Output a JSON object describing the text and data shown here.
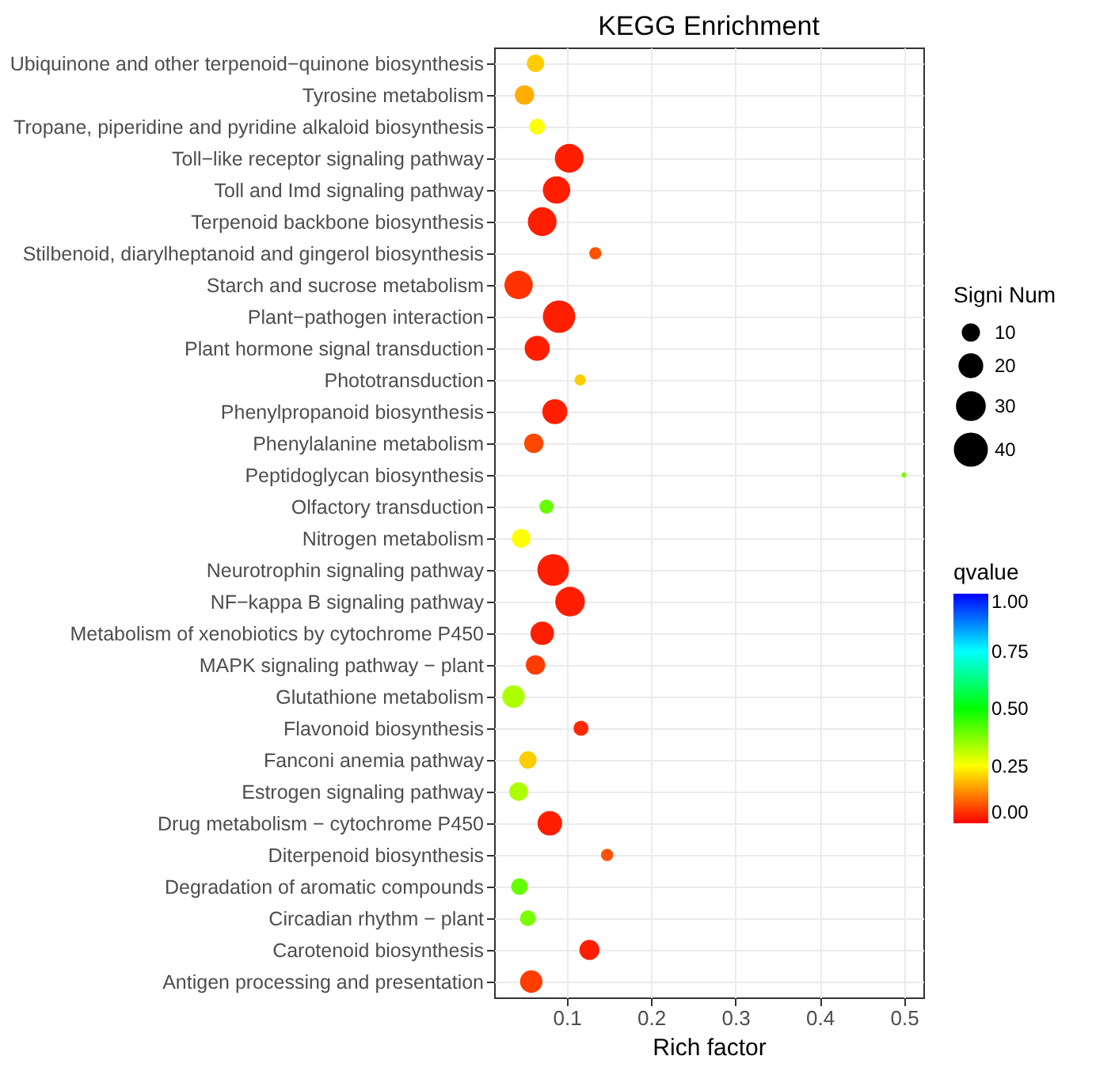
{
  "chart_data": {
    "type": "bubble",
    "title": "KEGG Enrichment",
    "xlabel": "Rich factor",
    "legend_title": "Signi Num",
    "clabel": "qvalue",
    "categories": [
      "Ubiquinone and other terpenoid−quinone biosynthesis",
      "Tyrosine metabolism",
      "Tropane, piperidine and pyridine alkaloid biosynthesis",
      "Toll−like receptor signaling pathway",
      "Toll and Imd signaling pathway",
      "Terpenoid backbone biosynthesis",
      "Stilbenoid, diarylheptanoid and gingerol biosynthesis",
      "Starch and sucrose metabolism",
      "Plant−pathogen interaction",
      "Plant hormone signal transduction",
      "Phototransduction",
      "Phenylpropanoid biosynthesis",
      "Phenylalanine metabolism",
      "Peptidoglycan biosynthesis",
      "Olfactory transduction",
      "Nitrogen metabolism",
      "Neurotrophin signaling pathway",
      "NF−kappa B signaling pathway",
      "Metabolism of xenobiotics by cytochrome P450",
      "MAPK signaling pathway − plant",
      "Glutathione metabolism",
      "Flavonoid biosynthesis",
      "Fanconi anemia pathway",
      "Estrogen signaling pathway",
      "Drug metabolism − cytochrome P450",
      "Diterpenoid biosynthesis",
      "Degradation of aromatic compounds",
      "Circadian rhythm − plant",
      "Carotenoid biosynthesis",
      "Antigen processing and presentation"
    ],
    "values": [
      0.063,
      0.05,
      0.065,
      0.103,
      0.088,
      0.071,
      0.134,
      0.043,
      0.091,
      0.065,
      0.116,
      0.086,
      0.061,
      0.5,
      0.076,
      0.046,
      0.084,
      0.104,
      0.071,
      0.063,
      0.037,
      0.117,
      0.054,
      0.043,
      0.08,
      0.148,
      0.044,
      0.054,
      0.127,
      0.058
    ],
    "sizes": [
      12,
      15,
      10,
      33,
      30,
      33,
      6,
      32,
      42,
      25,
      5,
      25,
      15,
      1,
      8,
      14,
      40,
      35,
      22,
      15,
      20,
      9,
      12,
      14,
      24,
      6,
      11,
      10,
      16,
      20
    ],
    "cvalues": [
      0.2,
      0.17,
      0.25,
      0.03,
      0.03,
      0.03,
      0.08,
      0.05,
      0.03,
      0.03,
      0.2,
      0.03,
      0.07,
      0.38,
      0.4,
      0.25,
      0.03,
      0.03,
      0.03,
      0.06,
      0.33,
      0.04,
      0.2,
      0.33,
      0.03,
      0.08,
      0.4,
      0.38,
      0.03,
      0.06
    ],
    "size_legend": [
      10,
      20,
      30,
      40
    ],
    "xlim": [
      0.014,
      0.523
    ],
    "xticks": [
      0.1,
      0.2,
      0.3,
      0.4,
      0.5
    ],
    "clim": [
      0,
      1
    ],
    "cticks": [
      {
        "value": 0,
        "label": "0.00"
      },
      {
        "value": 0.25,
        "label": "0.25"
      },
      {
        "value": 0.5,
        "label": "0.50"
      },
      {
        "value": 0.75,
        "label": "0.75"
      },
      {
        "value": 1,
        "label": "1.00"
      }
    ],
    "grid": true,
    "marker": "circle",
    "orientation": "horizontal"
  }
}
